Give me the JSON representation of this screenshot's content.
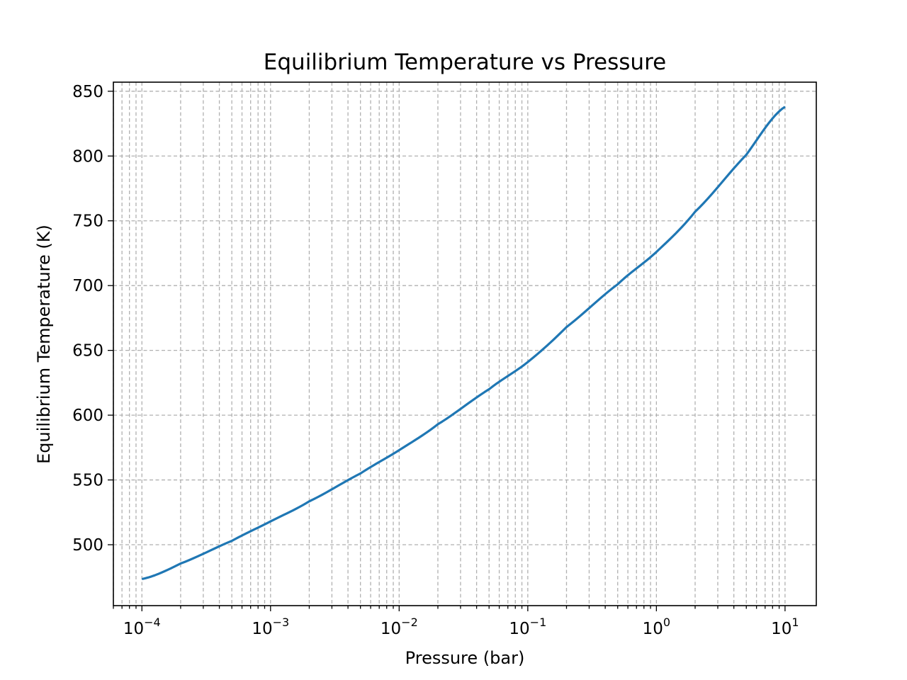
{
  "chart_data": {
    "type": "line",
    "title": "Equilibrium Temperature vs Pressure",
    "xlabel": "Pressure (bar)",
    "ylabel": "Equilibrium Temperature (K)",
    "xscale": "log",
    "xlim": [
      6e-05,
      17.5
    ],
    "ylim": [
      453,
      857
    ],
    "grid": true,
    "grid_minor": true,
    "x_ticks": [
      {
        "value": 0.0001,
        "base": "10",
        "exp": "−4"
      },
      {
        "value": 0.001,
        "base": "10",
        "exp": "−3"
      },
      {
        "value": 0.01,
        "base": "10",
        "exp": "−2"
      },
      {
        "value": 0.1,
        "base": "10",
        "exp": "−1"
      },
      {
        "value": 1,
        "base": "10",
        "exp": "0"
      },
      {
        "value": 10,
        "base": "10",
        "exp": "1"
      }
    ],
    "y_ticks": [
      {
        "value": 500,
        "label": "500"
      },
      {
        "value": 550,
        "label": "550"
      },
      {
        "value": 600,
        "label": "600"
      },
      {
        "value": 650,
        "label": "650"
      },
      {
        "value": 700,
        "label": "700"
      },
      {
        "value": 750,
        "label": "750"
      },
      {
        "value": 800,
        "label": "800"
      },
      {
        "value": 850,
        "label": "850"
      }
    ],
    "series": [
      {
        "color": "#1f77b4",
        "x": [
          0.0001,
          0.0002,
          0.0005,
          0.001,
          0.002,
          0.005,
          0.01,
          0.02,
          0.05,
          0.1,
          0.2,
          0.5,
          1,
          2,
          5,
          10
        ],
        "y": [
          473.5,
          485.5,
          503,
          518,
          533.5,
          555,
          573,
          593,
          620,
          641,
          668,
          701,
          726,
          757,
          801,
          838
        ]
      }
    ]
  }
}
